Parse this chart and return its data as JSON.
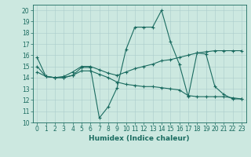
{
  "xlabel": "Humidex (Indice chaleur)",
  "background_color": "#cce8e0",
  "line_color": "#1a6b60",
  "xlim": [
    -0.5,
    23.5
  ],
  "ylim": [
    10,
    20.5
  ],
  "yticks": [
    10,
    11,
    12,
    13,
    14,
    15,
    16,
    17,
    18,
    19,
    20
  ],
  "xticks": [
    0,
    1,
    2,
    3,
    4,
    5,
    6,
    7,
    8,
    9,
    10,
    11,
    12,
    13,
    14,
    15,
    16,
    17,
    18,
    19,
    20,
    21,
    22,
    23
  ],
  "line1_x": [
    0,
    1,
    2,
    3,
    4,
    5,
    6,
    7,
    8,
    9,
    10,
    11,
    12,
    13,
    14,
    15,
    16,
    17,
    18,
    19,
    20,
    21,
    22,
    23
  ],
  "line1_y": [
    15.8,
    14.1,
    14.0,
    14.0,
    14.2,
    14.9,
    14.9,
    10.4,
    11.4,
    13.1,
    16.5,
    18.5,
    18.5,
    18.5,
    20.0,
    17.2,
    15.2,
    12.3,
    16.2,
    16.1,
    13.2,
    12.5,
    12.1,
    12.1
  ],
  "line2_x": [
    0,
    1,
    2,
    3,
    4,
    5,
    6,
    7,
    8,
    9,
    10,
    11,
    12,
    13,
    14,
    15,
    16,
    17,
    18,
    19,
    20,
    21,
    22,
    23
  ],
  "line2_y": [
    15.0,
    14.1,
    14.0,
    14.1,
    14.5,
    15.0,
    15.0,
    14.7,
    14.4,
    14.2,
    14.5,
    14.8,
    15.0,
    15.2,
    15.5,
    15.6,
    15.8,
    16.0,
    16.2,
    16.3,
    16.4,
    16.4,
    16.4,
    16.4
  ],
  "line3_x": [
    0,
    1,
    2,
    3,
    4,
    5,
    6,
    7,
    8,
    9,
    10,
    11,
    12,
    13,
    14,
    15,
    16,
    17,
    18,
    19,
    20,
    21,
    22,
    23
  ],
  "line3_y": [
    14.5,
    14.1,
    14.0,
    14.0,
    14.2,
    14.6,
    14.6,
    14.3,
    14.0,
    13.6,
    13.4,
    13.3,
    13.2,
    13.2,
    13.1,
    13.0,
    12.9,
    12.4,
    12.3,
    12.3,
    12.3,
    12.3,
    12.2,
    12.1
  ],
  "tick_fontsize": 5.5,
  "xlabel_fontsize": 6.5,
  "grid_color": "#aacccc"
}
